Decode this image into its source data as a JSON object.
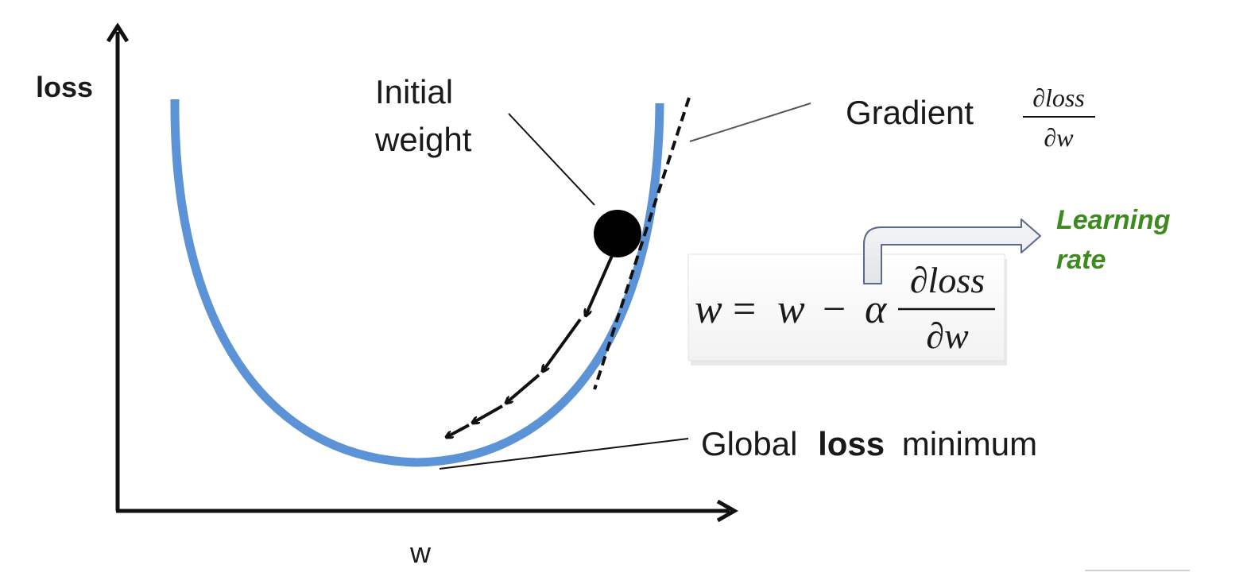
{
  "axes": {
    "y_label": "loss",
    "x_label": "w"
  },
  "labels": {
    "initial_weight_line1": "Initial",
    "initial_weight_line2": "weight",
    "gradient": "Gradient",
    "global_pre": "Global",
    "global_bold": "loss",
    "global_post": "minimum",
    "learning_rate_line1": "Learning",
    "learning_rate_line2": "rate"
  },
  "formula": {
    "gradient_num": "∂loss",
    "gradient_den": "∂w",
    "lhs": "w",
    "equals": "=",
    "w2": "w",
    "minus": "−",
    "alpha": "α",
    "num": "∂loss",
    "den": "∂w"
  },
  "colors": {
    "curve": "#5b93d6",
    "learning_rate": "#3d8a1f",
    "ink": "#111111"
  }
}
